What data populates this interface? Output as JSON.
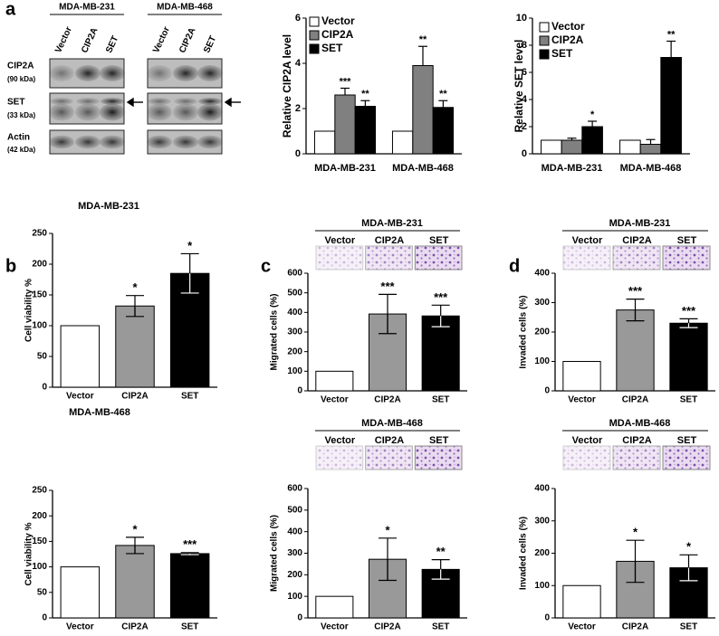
{
  "panel_labels": [
    "a",
    "b",
    "c",
    "d"
  ],
  "blot": {
    "groups": [
      {
        "name": "MDA-MB-231",
        "lanes": [
          "Vector",
          "CIP2A",
          "SET"
        ]
      },
      {
        "name": "MDA-MB-468",
        "lanes": [
          "Vector",
          "CIP2A",
          "SET"
        ]
      }
    ],
    "rows": [
      {
        "name": "CIP2A",
        "size": "(90 kDa)"
      },
      {
        "name": "SET",
        "size": "(33 kDa)"
      },
      {
        "name": "Actin",
        "size": "(42 kDa)"
      }
    ]
  },
  "chart_data": [
    {
      "type": "grouped_bar",
      "y_label": "Relative CIP2A level",
      "categories": [
        "MDA-MB-231",
        "MDA-MB-468"
      ],
      "series": [
        {
          "name": "Vector",
          "color": "#ffffff",
          "values": [
            1,
            1
          ],
          "errors": [
            null,
            null
          ],
          "annotations": [
            null,
            null
          ]
        },
        {
          "name": "CIP2A",
          "color": "#808080",
          "values": [
            2.6,
            3.9
          ],
          "errors": [
            0.3,
            0.85
          ],
          "annotations": [
            "***",
            "**"
          ]
        },
        {
          "name": "SET",
          "color": "#000000",
          "values": [
            2.1,
            2.05
          ],
          "errors": [
            0.25,
            0.3
          ],
          "annotations": [
            "**",
            "**"
          ]
        }
      ],
      "ylim": [
        0,
        6
      ],
      "yticks": [
        0,
        2,
        4,
        6
      ],
      "legend": "upper left"
    },
    {
      "type": "grouped_bar",
      "y_label": "Relative SET level",
      "categories": [
        "MDA-MB-231",
        "MDA-MB-468"
      ],
      "series": [
        {
          "name": "Vector",
          "color": "#ffffff",
          "values": [
            1,
            1
          ],
          "errors": [
            null,
            null
          ],
          "annotations": [
            null,
            null
          ]
        },
        {
          "name": "CIP2A",
          "color": "#808080",
          "values": [
            1.0,
            0.7
          ],
          "errors": [
            0.15,
            0.35
          ],
          "annotations": [
            null,
            null
          ]
        },
        {
          "name": "SET",
          "color": "#000000",
          "values": [
            2.0,
            7.1
          ],
          "errors": [
            0.4,
            1.2
          ],
          "annotations": [
            "*",
            "**"
          ]
        }
      ],
      "ylim": [
        0,
        10
      ],
      "yticks": [
        0,
        2,
        4,
        6,
        8,
        10
      ],
      "legend": "upper left"
    },
    {
      "type": "bar",
      "title": "MDA-MB-231",
      "y_label": "Cell viability %",
      "categories": [
        "Vector",
        "CIP2A",
        "SET"
      ],
      "values": [
        100,
        132,
        185
      ],
      "errors": [
        null,
        17,
        32
      ],
      "annotations": [
        null,
        "*",
        "*"
      ],
      "colors": [
        "#ffffff",
        "#999999",
        "#000000"
      ],
      "ylim": [
        0,
        250
      ],
      "yticks": [
        0,
        50,
        100,
        150,
        200,
        250
      ]
    },
    {
      "type": "bar",
      "title": "MDA-MB-468",
      "y_label": "Cell viability %",
      "categories": [
        "Vector",
        "CIP2A",
        "SET"
      ],
      "values": [
        100,
        142,
        126
      ],
      "errors": [
        null,
        16,
        2
      ],
      "annotations": [
        null,
        "*",
        "***"
      ],
      "colors": [
        "#ffffff",
        "#999999",
        "#000000"
      ],
      "ylim": [
        0,
        250
      ],
      "yticks": [
        0,
        50,
        100,
        150,
        200,
        250
      ]
    },
    {
      "type": "bar",
      "header": "MDA-MB-231",
      "image_labels": [
        "Vector",
        "CIP2A",
        "SET"
      ],
      "y_label": "Migrated cells (%)",
      "categories": [
        "Vector",
        "CIP2A",
        "SET"
      ],
      "values": [
        100,
        392,
        382
      ],
      "errors": [
        null,
        100,
        55
      ],
      "annotations": [
        null,
        "***",
        "***"
      ],
      "colors": [
        "#ffffff",
        "#999999",
        "#000000"
      ],
      "ylim": [
        0,
        600
      ],
      "yticks": [
        0,
        100,
        200,
        300,
        400,
        500,
        600
      ]
    },
    {
      "type": "bar",
      "header": "MDA-MB-468",
      "image_labels": [
        "Vector",
        "CIP2A",
        "SET"
      ],
      "y_label": "Migrated cells (%)",
      "categories": [
        "Vector",
        "CIP2A",
        "SET"
      ],
      "values": [
        100,
        272,
        225
      ],
      "errors": [
        null,
        98,
        45
      ],
      "annotations": [
        null,
        "*",
        "**"
      ],
      "colors": [
        "#ffffff",
        "#999999",
        "#000000"
      ],
      "ylim": [
        0,
        600
      ],
      "yticks": [
        0,
        100,
        200,
        300,
        400,
        500,
        600
      ]
    },
    {
      "type": "bar",
      "header": "MDA-MB-231",
      "image_labels": [
        "Vector",
        "CIP2A",
        "SET"
      ],
      "y_label": "Invaded cells (%)",
      "categories": [
        "Vector",
        "CIP2A",
        "SET"
      ],
      "values": [
        100,
        275,
        230
      ],
      "errors": [
        null,
        37,
        15
      ],
      "annotations": [
        null,
        "***",
        "***"
      ],
      "colors": [
        "#ffffff",
        "#999999",
        "#000000"
      ],
      "ylim": [
        0,
        400
      ],
      "yticks": [
        0,
        100,
        200,
        300,
        400
      ]
    },
    {
      "type": "bar",
      "header": "MDA-MB-468",
      "image_labels": [
        "Vector",
        "CIP2A",
        "SET"
      ],
      "y_label": "Invaded cells (%)",
      "categories": [
        "Vector",
        "CIP2A",
        "SET"
      ],
      "values": [
        100,
        175,
        155
      ],
      "errors": [
        null,
        65,
        40
      ],
      "annotations": [
        null,
        "*",
        "*"
      ],
      "colors": [
        "#ffffff",
        "#999999",
        "#000000"
      ],
      "ylim": [
        0,
        400
      ],
      "yticks": [
        0,
        100,
        200,
        300,
        400
      ]
    }
  ]
}
